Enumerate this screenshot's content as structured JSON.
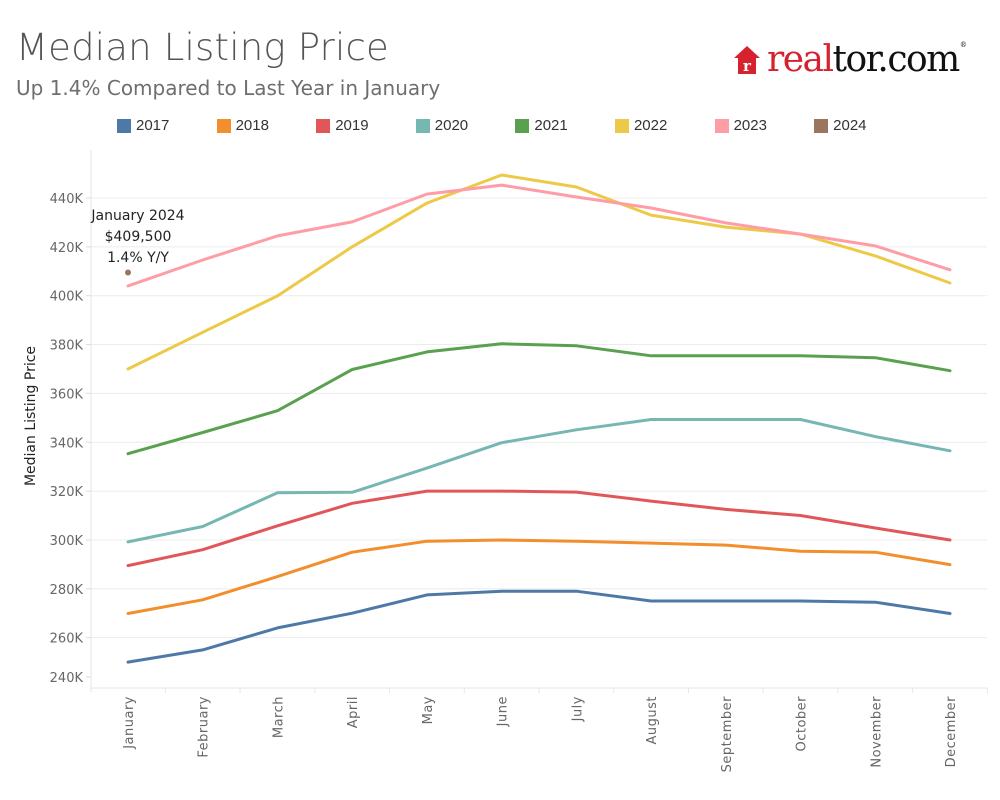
{
  "header": {
    "title": "Median Listing Price",
    "subtitle": "Up 1.4% Compared to Last Year in January"
  },
  "logo": {
    "icon": "house-r-icon",
    "text_red": "real",
    "text_black": "tor.com",
    "reg": "®",
    "brand_color": "#d6212f"
  },
  "chart_data": {
    "type": "line",
    "title": "Median Listing Price",
    "subtitle": "Up 1.4% Compared to Last Year in January",
    "xlabel": "",
    "ylabel": "Median Listing Price",
    "categories": [
      "January",
      "February",
      "March",
      "April",
      "May",
      "June",
      "July",
      "August",
      "September",
      "October",
      "November",
      "December"
    ],
    "yticks": [
      240000,
      260000,
      280000,
      300000,
      320000,
      340000,
      360000,
      380000,
      400000,
      420000,
      440000
    ],
    "ytick_labels": [
      "240K",
      "260K",
      "280K",
      "300K",
      "320K",
      "340K",
      "360K",
      "380K",
      "400K",
      "420K",
      "440K"
    ],
    "ylim": [
      236000,
      456000
    ],
    "grid": true,
    "legend_position": "top",
    "series": [
      {
        "name": "2017",
        "color": "#4e79a7",
        "values": [
          250000,
          255000,
          264000,
          270000,
          277500,
          279000,
          279000,
          275000,
          275000,
          275000,
          274500,
          269900
        ]
      },
      {
        "name": "2018",
        "color": "#f28e2b",
        "values": [
          269900,
          275500,
          285000,
          295000,
          299500,
          300000,
          299500,
          298700,
          297900,
          295400,
          295000,
          289900
        ]
      },
      {
        "name": "2019",
        "color": "#e15759",
        "values": [
          289500,
          296000,
          305800,
          315000,
          320000,
          320000,
          319600,
          315900,
          312500,
          310000,
          304900,
          300000
        ]
      },
      {
        "name": "2020",
        "color": "#76b7b2",
        "values": [
          299200,
          305500,
          319300,
          319500,
          329400,
          339800,
          345100,
          349300,
          349300,
          349300,
          342300,
          336500
        ]
      },
      {
        "name": "2021",
        "color": "#59a14f",
        "values": [
          335300,
          344000,
          352900,
          369800,
          377000,
          380300,
          379500,
          375400,
          375400,
          375400,
          374600,
          369300
        ]
      },
      {
        "name": "2022",
        "color": "#edc948",
        "values": [
          370000,
          385000,
          399900,
          420000,
          437900,
          449400,
          444500,
          433000,
          428100,
          425200,
          416300,
          405200
        ]
      },
      {
        "name": "2023",
        "color": "#ff9da7",
        "values": [
          404000,
          414600,
          424500,
          430200,
          441600,
          445300,
          440400,
          435900,
          429800,
          425200,
          420400,
          410600
        ]
      },
      {
        "name": "2024",
        "color": "#9c755f",
        "values": [
          409500,
          null,
          null,
          null,
          null,
          null,
          null,
          null,
          null,
          null,
          null,
          null
        ]
      }
    ],
    "annotations": [
      {
        "series": "2024",
        "category": "January",
        "lines": [
          "January 2024",
          "$409,500",
          "1.4% Y/Y"
        ]
      }
    ]
  }
}
